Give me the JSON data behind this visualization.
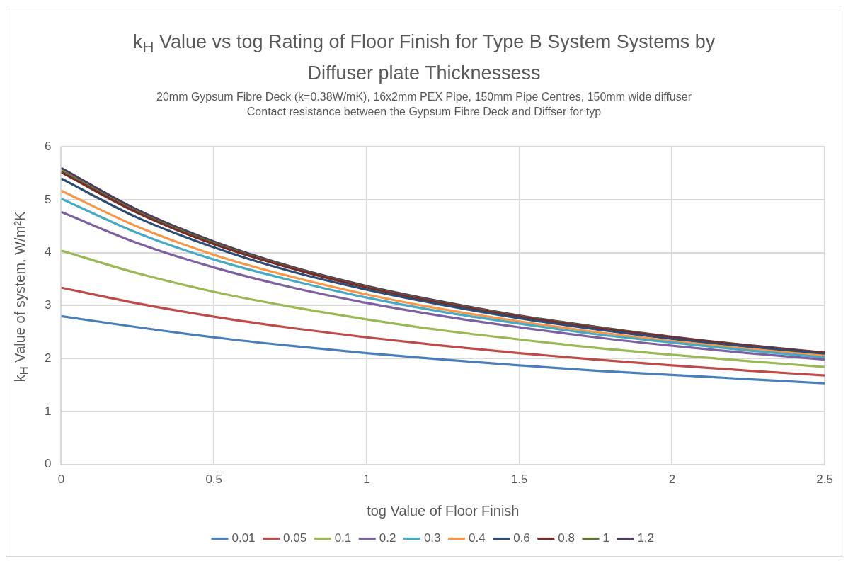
{
  "chart_data": {
    "type": "line",
    "title": "k$_{H}$ Value vs tog Rating of Floor Finish for Type B System Systems by Diffuser plate Thicknessess",
    "subtitle": "20mm Gypsum Fibre Deck (k=0.38W/mK), 16x2mm PEX Pipe, 150mm Pipe Centres, 150mm wide diffuser\nContact resistance between the Gypsum Fibre Deck and Diffser for typ",
    "xlabel": "tog Value of Floor Finish",
    "ylabel": "k$_{H}$ Value of system, W/m²K",
    "x": [
      0,
      0.25,
      0.5,
      0.75,
      1,
      1.25,
      1.5,
      1.75,
      2,
      2.25,
      2.5
    ],
    "series": [
      {
        "name": "0.01",
        "color": "#4a7ebb",
        "values": [
          2.8,
          2.59,
          2.4,
          2.24,
          2.1,
          1.98,
          1.87,
          1.77,
          1.69,
          1.61,
          1.53
        ]
      },
      {
        "name": "0.05",
        "color": "#be4b48",
        "values": [
          3.34,
          3.04,
          2.79,
          2.58,
          2.4,
          2.24,
          2.1,
          1.98,
          1.87,
          1.77,
          1.68
        ]
      },
      {
        "name": "0.1",
        "color": "#98b954",
        "values": [
          4.04,
          3.61,
          3.26,
          2.98,
          2.74,
          2.53,
          2.36,
          2.2,
          2.07,
          1.95,
          1.84
        ]
      },
      {
        "name": "0.2",
        "color": "#7d60a0",
        "values": [
          4.77,
          4.18,
          3.72,
          3.35,
          3.05,
          2.8,
          2.59,
          2.4,
          2.24,
          2.1,
          1.98
        ]
      },
      {
        "name": "0.3",
        "color": "#46aac5",
        "values": [
          5.02,
          4.37,
          3.87,
          3.48,
          3.15,
          2.88,
          2.66,
          2.46,
          2.3,
          2.15,
          2.02
        ]
      },
      {
        "name": "0.4",
        "color": "#f79646",
        "values": [
          5.17,
          4.49,
          3.96,
          3.55,
          3.21,
          2.93,
          2.7,
          2.5,
          2.33,
          2.18,
          2.05
        ]
      },
      {
        "name": "0.6",
        "color": "#2c4d75",
        "values": [
          5.4,
          4.66,
          4.1,
          3.65,
          3.3,
          3.01,
          2.76,
          2.55,
          2.37,
          2.22,
          2.08
        ]
      },
      {
        "name": "0.8",
        "color": "#772c2a",
        "values": [
          5.52,
          4.75,
          4.16,
          3.71,
          3.34,
          3.04,
          2.79,
          2.58,
          2.4,
          2.24,
          2.1
        ]
      },
      {
        "name": "1",
        "color": "#5f7530",
        "values": [
          5.55,
          4.77,
          4.18,
          3.72,
          3.35,
          3.05,
          2.8,
          2.59,
          2.4,
          2.24,
          2.1
        ]
      },
      {
        "name": "1.2",
        "color": "#4d3b62",
        "values": [
          5.6,
          4.81,
          4.21,
          3.74,
          3.37,
          3.07,
          2.81,
          2.6,
          2.41,
          2.25,
          2.11
        ]
      }
    ],
    "xlim": [
      0,
      2.5
    ],
    "xticks": [
      0,
      0.5,
      1,
      1.5,
      2,
      2.5
    ],
    "ylim": [
      0,
      6
    ],
    "yticks": [
      0,
      1,
      2,
      3,
      4,
      5,
      6
    ],
    "grid": true,
    "legend": "bottom",
    "marker": "none",
    "line_style": "solid"
  }
}
